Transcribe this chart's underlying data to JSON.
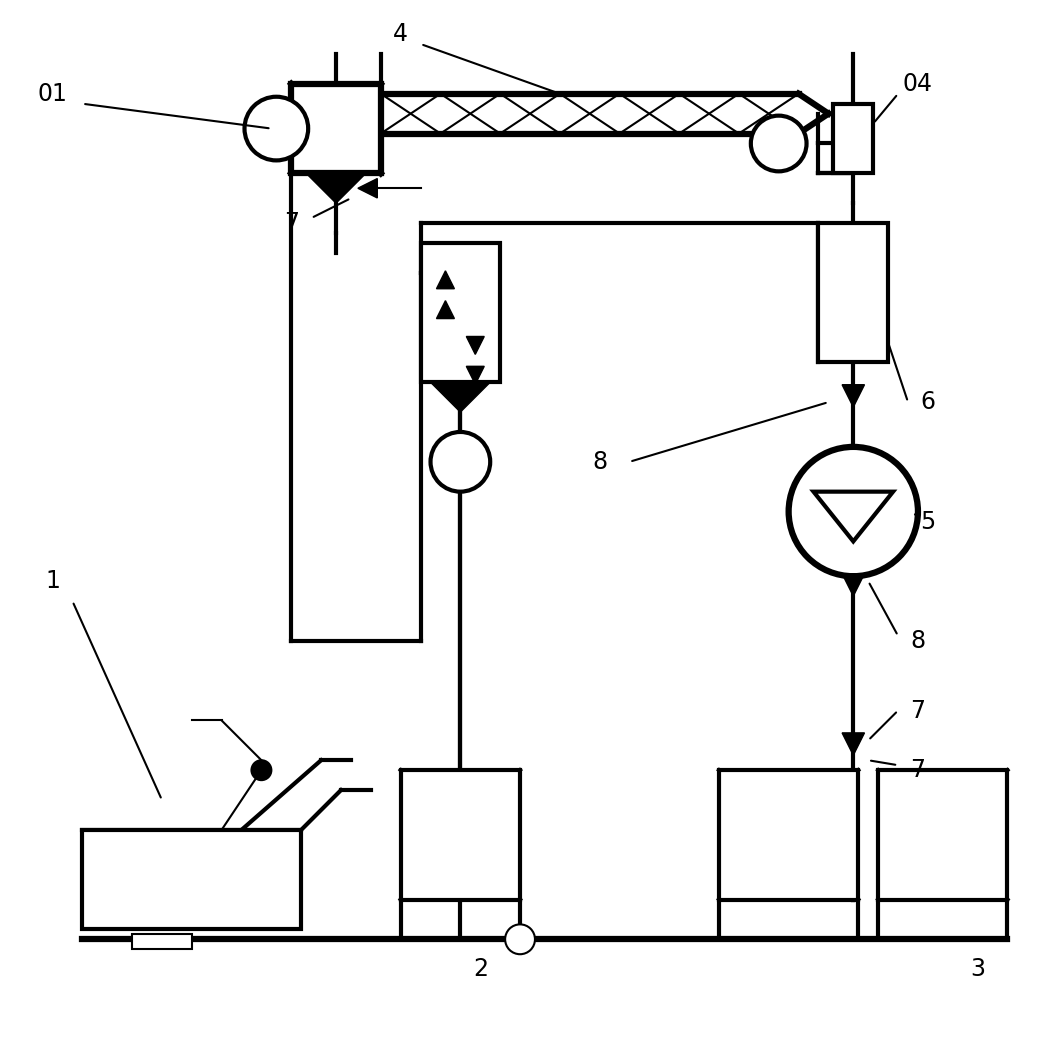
{
  "bg": "#ffffff",
  "lc": "#000000",
  "lw": 3.0,
  "lw_thin": 1.5,
  "lw_thick": 4.5,
  "fs": 17,
  "xlim": [
    0,
    106
  ],
  "ylim": [
    0,
    104
  ]
}
